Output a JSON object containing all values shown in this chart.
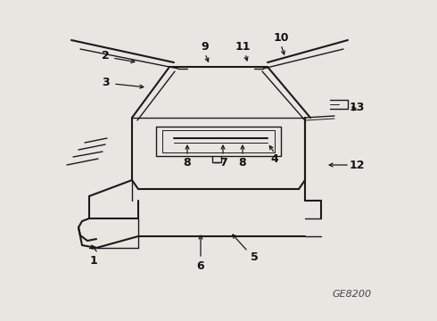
{
  "bg_color": "#e8e6e0",
  "line_color": "#1a1a1a",
  "label_color": "#111111",
  "watermark": "GE8200",
  "figsize": [
    4.9,
    3.6
  ],
  "dpi": 100
}
